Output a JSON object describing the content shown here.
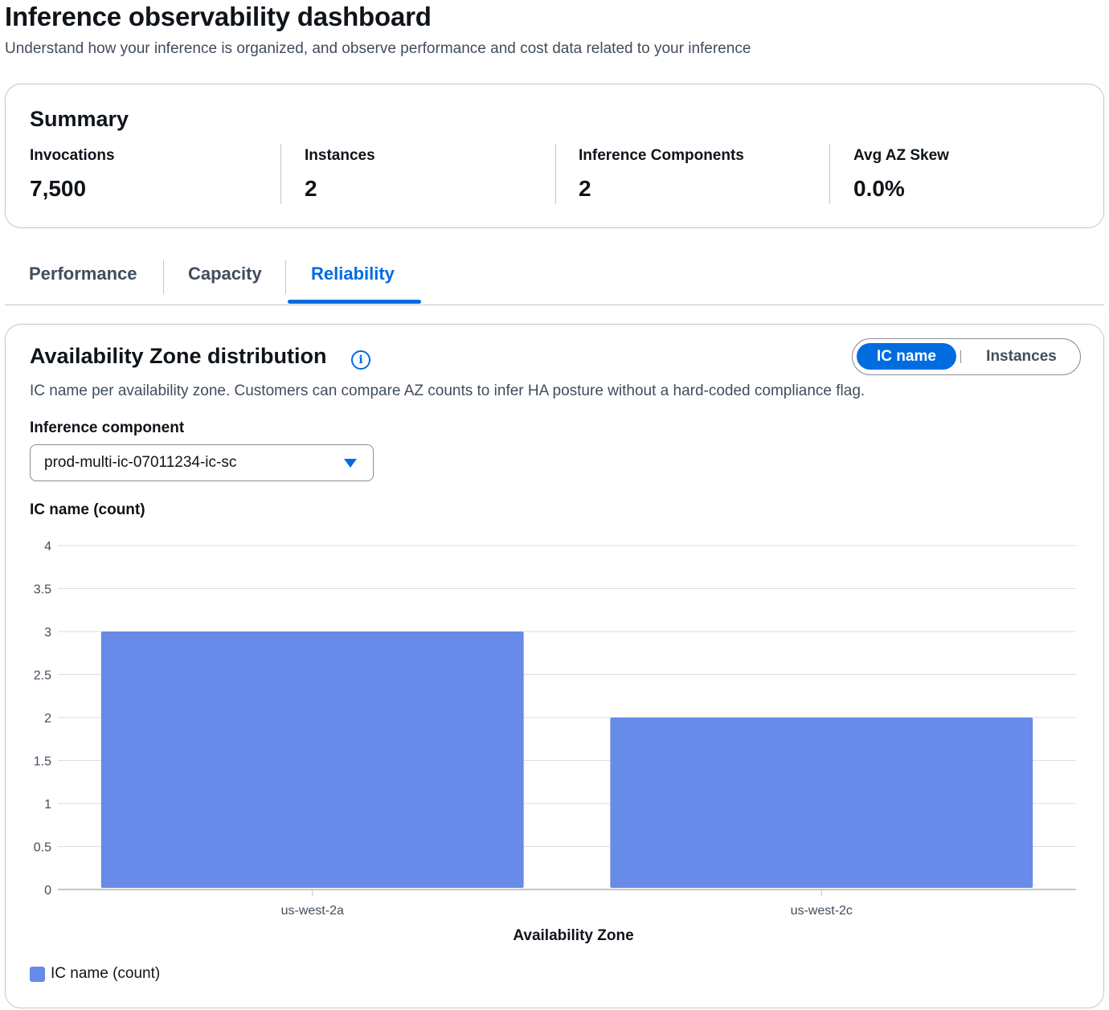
{
  "page": {
    "title": "Inference observability dashboard",
    "subtitle": "Understand how your inference is organized, and observe performance and cost data related to your inference"
  },
  "summary": {
    "title": "Summary",
    "metrics": [
      {
        "label": "Invocations",
        "value": "7,500"
      },
      {
        "label": "Instances",
        "value": "2"
      },
      {
        "label": "Inference Components",
        "value": "2"
      },
      {
        "label": "Avg AZ Skew",
        "value": "0.0%"
      }
    ]
  },
  "tabs": [
    {
      "label": "Performance",
      "active": false
    },
    {
      "label": "Capacity",
      "active": false
    },
    {
      "label": "Reliability",
      "active": true
    }
  ],
  "panel": {
    "title": "Availability Zone distribution",
    "info_icon": "info-icon",
    "description": "IC name per availability zone. Customers can compare AZ counts to infer HA posture without a hard-coded compliance flag.",
    "toggle": {
      "options": [
        "IC name",
        "Instances"
      ],
      "selected": "IC name"
    },
    "field_label": "Inference component",
    "select_value": "prod-multi-ic-07011234-ic-sc",
    "chart_title": "IC name (count)"
  },
  "colors": {
    "accent": "#006ce0",
    "bar": "#688ae8",
    "grid": "#dedee3"
  },
  "chart_data": {
    "type": "bar",
    "categories": [
      "us-west-2a",
      "us-west-2c"
    ],
    "series": [
      {
        "name": "IC name (count)",
        "values": [
          3,
          2
        ]
      }
    ],
    "xlabel": "Availability Zone",
    "ylabel": "",
    "ylim": [
      0,
      4
    ],
    "yticks": [
      "0",
      "0.5",
      "1",
      "1.5",
      "2",
      "2.5",
      "3",
      "3.5",
      "4"
    ],
    "grid": true,
    "legend": "bottom-left"
  }
}
